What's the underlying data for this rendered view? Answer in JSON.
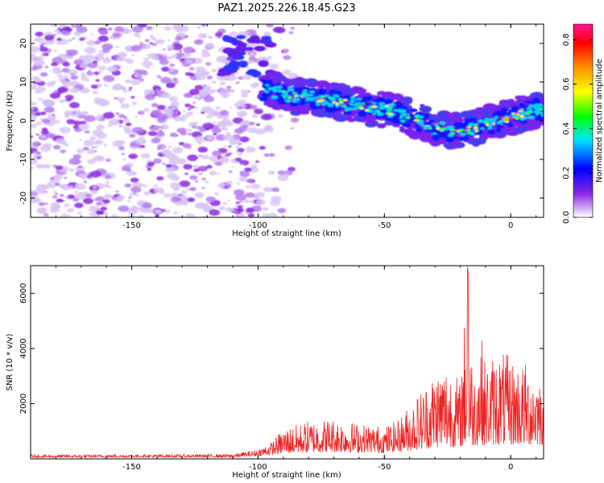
{
  "figure": {
    "title": "PAZ1.2025.226.18.45.G23"
  },
  "chart_data": [
    {
      "type": "heatmap",
      "xlabel": "Height of straight line (km)",
      "ylabel": "Frequency (Hz)",
      "xlim": [
        -190,
        13
      ],
      "ylim": [
        -25,
        25
      ],
      "xticks": [
        -150,
        -100,
        -50,
        0
      ],
      "yticks": [
        -20,
        -10,
        0,
        10,
        20
      ],
      "colorbar": {
        "label": "Normalized spectral amplitude",
        "range": [
          0,
          0.87
        ],
        "ticks": [
          "0.0",
          "0.2",
          "0.4",
          "0.6",
          "0.8"
        ],
        "tick_values": [
          0,
          0.2,
          0.4,
          0.6,
          0.8
        ],
        "colormap": [
          "#ffffff",
          "#8a2be2",
          "#0000ff",
          "#00e5ff",
          "#00ff00",
          "#ffff00",
          "#ff8c00",
          "#ff0000",
          "#ff1493"
        ]
      },
      "ridge": {
        "x": [
          -98,
          -90,
          -80,
          -70,
          -60,
          -50,
          -45,
          -40,
          -35,
          -30,
          -25,
          -20,
          -15,
          -10,
          -5,
          0,
          5,
          10,
          13
        ],
        "y": [
          8,
          7,
          6,
          5,
          4,
          3,
          2,
          1,
          -0.5,
          -2,
          -2.5,
          -3,
          -2,
          -1,
          0,
          1,
          2,
          3,
          2.5
        ]
      }
    },
    {
      "type": "line",
      "xlabel": "Height of straight line (km)",
      "ylabel": "SNR (10 * v/v)",
      "xlim": [
        -190,
        13
      ],
      "ylim": [
        0,
        7000
      ],
      "xticks": [
        -150,
        -100,
        -50,
        0
      ],
      "yticks": [
        2000,
        4000,
        6000
      ],
      "color": "#ee2222",
      "envelope": {
        "x": [
          -190,
          -110,
          -100,
          -95,
          -90,
          -80,
          -70,
          -60,
          -50,
          -45,
          -40,
          -35,
          -30,
          -25,
          -20,
          -17,
          -15,
          -12,
          -10,
          -5,
          0,
          5,
          10,
          13
        ],
        "y": [
          150,
          170,
          350,
          600,
          1100,
          1400,
          1500,
          1300,
          1200,
          1400,
          2000,
          2600,
          3300,
          3600,
          2800,
          7000,
          3000,
          4800,
          3500,
          4000,
          3700,
          3500,
          3400,
          3000
        ]
      },
      "baseline": {
        "x": [
          -190,
          -110,
          -100,
          -90,
          -70,
          -50,
          -40,
          -30,
          -20,
          -10,
          0,
          13
        ],
        "y": [
          50,
          60,
          100,
          200,
          250,
          220,
          300,
          400,
          450,
          500,
          500,
          500
        ]
      }
    }
  ]
}
